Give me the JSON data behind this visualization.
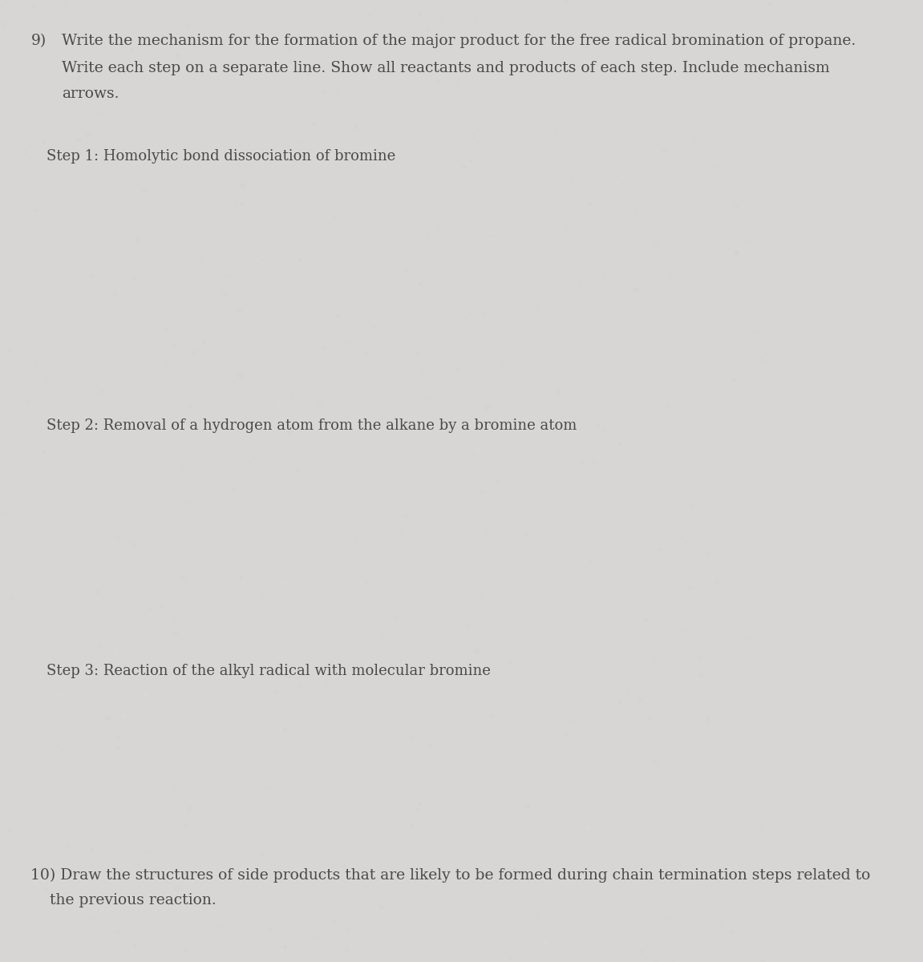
{
  "background_color": "#d8d6d4",
  "text_color": "#4a4a4a",
  "q9_number": "9)",
  "q9_line1": "Write the mechanism for the formation of the major product for the free radical bromination of propane.",
  "q9_line2": "Write each step on a separate line. Show all reactants and products of each step. Include mechanism",
  "q9_line3": "arrows.",
  "step1_label": "Step 1: Homolytic bond dissociation of bromine",
  "step2_label": "Step 2: Removal of a hydrogen atom from the alkane by a bromine atom",
  "step3_label": "Step 3: Reaction of the alkyl radical with molecular bromine",
  "q10_line1": "10) Draw the structures of side products that are likely to be formed during chain termination steps related to",
  "q10_line2": "    the previous reaction.",
  "font_size_main": 13.5,
  "font_size_steps": 13.0
}
